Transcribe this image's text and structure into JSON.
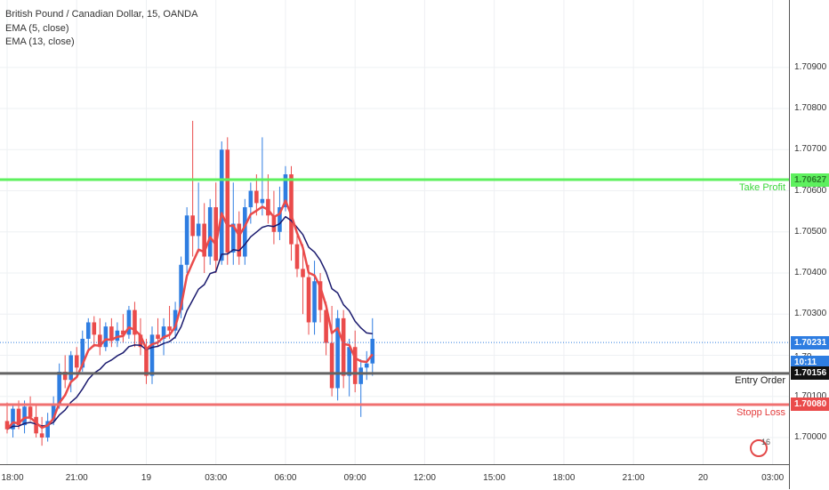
{
  "legend": {
    "symbol": "British Pound / Canadian Dollar, 15, OANDA",
    "ema5": "EMA (5, close)",
    "ema13": "EMA (13, close)"
  },
  "price_axis": {
    "labels": [
      "1.70900",
      "1.70800",
      "1.70700",
      "1.70600",
      "1.70500",
      "1.70400",
      "1.70300",
      "1.70100",
      "1.70000"
    ],
    "values": [
      1.709,
      1.708,
      1.707,
      1.706,
      1.705,
      1.704,
      1.703,
      1.701,
      1.7
    ],
    "range": [
      1.69935,
      1.71064
    ]
  },
  "time_axis": {
    "labels": [
      "18:00",
      "21:00",
      "19",
      "03:00",
      "06:00",
      "09:00",
      "12:00",
      "15:00",
      "18:00",
      "21:00",
      "20",
      "03:00"
    ],
    "bar_index": [
      0,
      12,
      24,
      36,
      48,
      60,
      72,
      84,
      96,
      108,
      120,
      132
    ]
  },
  "levels": {
    "take_profit": {
      "label": "Take Profit",
      "tag": "1.70627",
      "price": 1.70627,
      "color": "#5ef05e"
    },
    "entry": {
      "label": "Entry Order",
      "tag": "1.70156",
      "price": 1.70156,
      "color": "#636363"
    },
    "stop": {
      "label": "Stopp Loss",
      "tag": "1.70080",
      "price": 1.7008,
      "color": "#f07070"
    },
    "current": {
      "tag": "1.70231",
      "countdown": "10:11",
      "price": 1.70231,
      "color": "#2e7de1"
    },
    "hidden_tag": "1.70"
  },
  "colors": {
    "up": "#2e7de1",
    "down": "#ea4b4b",
    "ema5": "#ea4b4b",
    "ema13": "#1a1a6e"
  },
  "logo_number": "16",
  "chart_data": {
    "type": "candlestick",
    "timeframe": "15",
    "bars": [
      [
        1.7004,
        1.70085,
        1.7001,
        1.7002
      ],
      [
        1.7002,
        1.7008,
        1.7,
        1.7007
      ],
      [
        1.7007,
        1.7009,
        1.7002,
        1.7003
      ],
      [
        1.7003,
        1.7009,
        1.7001,
        1.70075
      ],
      [
        1.70075,
        1.701,
        1.7004,
        1.7005
      ],
      [
        1.7005,
        1.7008,
        1.7,
        1.7001
      ],
      [
        1.7001,
        1.7005,
        1.6998,
        1.7
      ],
      [
        1.7,
        1.7006,
        1.6999,
        1.7004
      ],
      [
        1.7004,
        1.701,
        1.7003,
        1.7008
      ],
      [
        1.7008,
        1.7018,
        1.7007,
        1.7016
      ],
      [
        1.7016,
        1.702,
        1.7012,
        1.7014
      ],
      [
        1.7014,
        1.7021,
        1.7011,
        1.702
      ],
      [
        1.702,
        1.7022,
        1.7015,
        1.7017
      ],
      [
        1.7017,
        1.7026,
        1.7016,
        1.7024
      ],
      [
        1.7024,
        1.7029,
        1.7021,
        1.7028
      ],
      [
        1.7028,
        1.70295,
        1.7022,
        1.7025
      ],
      [
        1.7025,
        1.7029,
        1.702,
        1.7022
      ],
      [
        1.7022,
        1.7028,
        1.7021,
        1.7027
      ],
      [
        1.7027,
        1.7029,
        1.7022,
        1.70235
      ],
      [
        1.70235,
        1.7028,
        1.7022,
        1.7026
      ],
      [
        1.7026,
        1.703,
        1.7023,
        1.7025
      ],
      [
        1.7025,
        1.7032,
        1.7024,
        1.7031
      ],
      [
        1.7031,
        1.7033,
        1.7022,
        1.7025
      ],
      [
        1.7025,
        1.7029,
        1.702,
        1.7022
      ],
      [
        1.7022,
        1.7024,
        1.7013,
        1.7015
      ],
      [
        1.7015,
        1.7027,
        1.7013,
        1.7025
      ],
      [
        1.7025,
        1.7029,
        1.7022,
        1.7024
      ],
      [
        1.7024,
        1.7029,
        1.702,
        1.7027
      ],
      [
        1.7027,
        1.7032,
        1.7024,
        1.7026
      ],
      [
        1.7026,
        1.7033,
        1.7024,
        1.7031
      ],
      [
        1.7031,
        1.7044,
        1.7029,
        1.7042
      ],
      [
        1.7042,
        1.7056,
        1.704,
        1.7054
      ],
      [
        1.7054,
        1.7077,
        1.7044,
        1.7049
      ],
      [
        1.7049,
        1.7062,
        1.7045,
        1.7052
      ],
      [
        1.7052,
        1.7057,
        1.704,
        1.7044
      ],
      [
        1.7044,
        1.7058,
        1.7042,
        1.7056
      ],
      [
        1.7056,
        1.7062,
        1.704,
        1.7043
      ],
      [
        1.7043,
        1.7072,
        1.7042,
        1.707
      ],
      [
        1.707,
        1.7073,
        1.7042,
        1.7045
      ],
      [
        1.7045,
        1.7062,
        1.7042,
        1.7052
      ],
      [
        1.7052,
        1.7055,
        1.7042,
        1.7044
      ],
      [
        1.7044,
        1.7058,
        1.7042,
        1.7056
      ],
      [
        1.7056,
        1.7062,
        1.7052,
        1.706
      ],
      [
        1.706,
        1.7064,
        1.7054,
        1.7057
      ],
      [
        1.7057,
        1.7073,
        1.7054,
        1.7058
      ],
      [
        1.7058,
        1.7064,
        1.7052,
        1.7054
      ],
      [
        1.7054,
        1.706,
        1.7047,
        1.705
      ],
      [
        1.705,
        1.7061,
        1.7048,
        1.7056
      ],
      [
        1.7056,
        1.7066,
        1.7055,
        1.7064
      ],
      [
        1.7064,
        1.7066,
        1.7043,
        1.7047
      ],
      [
        1.7047,
        1.705,
        1.7039,
        1.7041
      ],
      [
        1.7041,
        1.7047,
        1.703,
        1.7039
      ],
      [
        1.7039,
        1.7042,
        1.7025,
        1.7028
      ],
      [
        1.7028,
        1.7043,
        1.7025,
        1.7038
      ],
      [
        1.7038,
        1.704,
        1.7028,
        1.7031
      ],
      [
        1.7031,
        1.7033,
        1.702,
        1.7023
      ],
      [
        1.7023,
        1.7032,
        1.701,
        1.7012
      ],
      [
        1.7012,
        1.7031,
        1.7009,
        1.7029
      ],
      [
        1.7029,
        1.7031,
        1.7012,
        1.7015
      ],
      [
        1.7015,
        1.7024,
        1.701,
        1.7022
      ],
      [
        1.7022,
        1.7026,
        1.7011,
        1.7013
      ],
      [
        1.7013,
        1.7019,
        1.7005,
        1.7017
      ],
      [
        1.7017,
        1.7021,
        1.7014,
        1.7018
      ],
      [
        1.7018,
        1.7029,
        1.7015,
        1.7024
      ]
    ],
    "ema5_label": "EMA (5, close)",
    "ema13_label": "EMA (13, close)"
  }
}
